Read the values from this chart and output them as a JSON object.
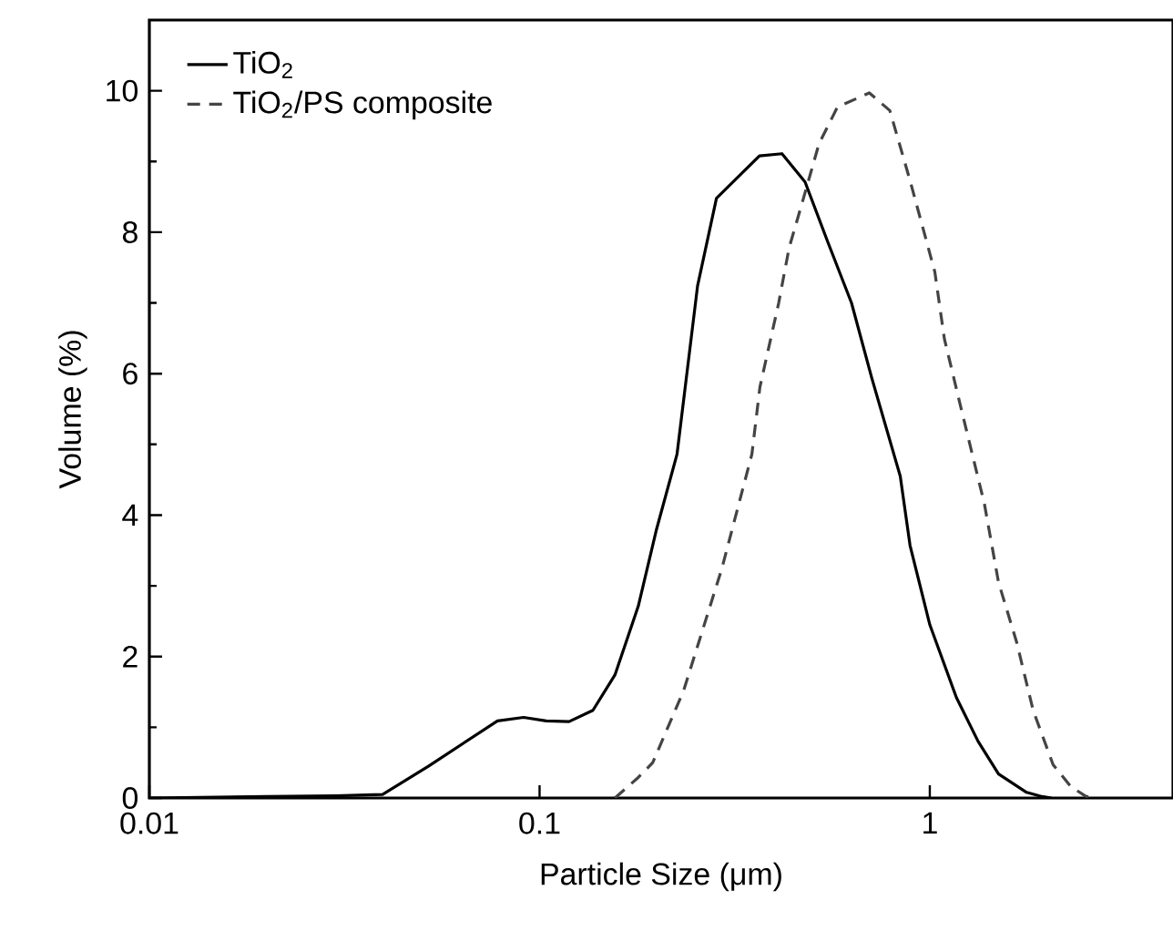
{
  "chart_data": {
    "type": "line",
    "xlabel": "Particle Size (μm)",
    "ylabel": "Volume (%)",
    "log": "x",
    "xlim": [
      0.01,
      4.2
    ],
    "ylim": [
      0,
      11
    ],
    "xticks": [
      0.01,
      0.1,
      1
    ],
    "yticks": [
      0,
      2,
      4,
      6,
      8,
      10
    ],
    "legend": "top left",
    "grid": false,
    "marker": "none",
    "series": [
      {
        "name": "TiO$_{2}$",
        "color": "#000000",
        "line_style": "solid",
        "x": [
          0.01,
          0.02,
          0.03,
          0.0396,
          0.0519,
          0.078,
          0.091,
          0.104,
          0.119,
          0.137,
          0.156,
          0.179,
          0.199,
          0.225,
          0.254,
          0.284,
          0.366,
          0.418,
          0.479,
          0.547,
          0.63,
          0.71,
          0.84,
          0.89,
          1.0,
          1.17,
          1.33,
          1.5,
          1.77,
          1.94,
          2.05
        ],
        "values": [
          0,
          0.02,
          0.03,
          0.05,
          0.45,
          1.09,
          1.14,
          1.09,
          1.08,
          1.24,
          1.74,
          2.71,
          3.78,
          4.86,
          7.24,
          8.48,
          9.08,
          9.11,
          8.71,
          7.87,
          7.0,
          5.94,
          4.55,
          3.57,
          2.45,
          1.42,
          0.8,
          0.34,
          0.08,
          0.02,
          0
        ]
      },
      {
        "name": "TiO$_{2}$/PS composite",
        "color": "#444444",
        "line_style": "dashed",
        "x": [
          0.156,
          0.179,
          0.195,
          0.234,
          0.293,
          0.35,
          0.367,
          0.41,
          0.436,
          0.47,
          0.52,
          0.58,
          0.7,
          0.79,
          0.89,
          1.03,
          1.09,
          1.21,
          1.38,
          1.5,
          1.67,
          1.84,
          2.07,
          2.3,
          2.5,
          2.6
        ],
        "values": [
          0,
          0.29,
          0.5,
          1.52,
          3.24,
          4.86,
          5.81,
          7.0,
          7.78,
          8.4,
          9.25,
          9.77,
          9.97,
          9.72,
          8.73,
          7.44,
          6.49,
          5.45,
          4.16,
          3.05,
          2.2,
          1.24,
          0.47,
          0.16,
          0.03,
          0
        ]
      }
    ]
  }
}
